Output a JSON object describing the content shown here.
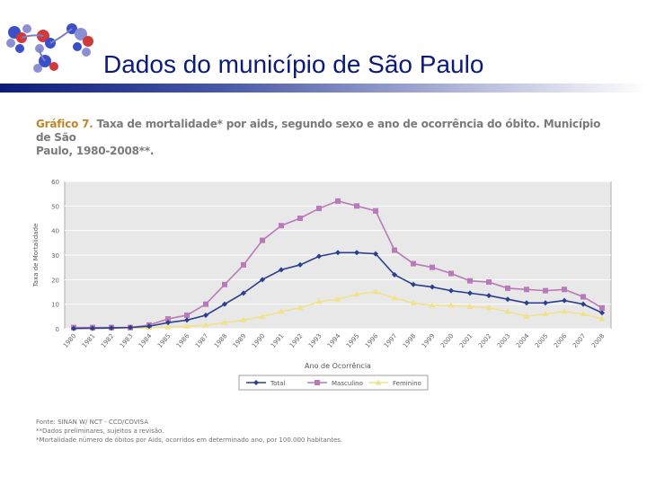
{
  "slide": {
    "title": "Dados do município de São Paulo"
  },
  "logo": {
    "icon": "dna-molecule-logo",
    "colors": [
      "#3a4fc8",
      "#d03a3a",
      "#8c8fd6"
    ]
  },
  "figure": {
    "caption_number": "Gráfico 7.",
    "caption_line1": " Taxa de mortalidade* por aids, segundo sexo e ano de ocorrência do óbito. Município de São",
    "caption_line2": "Paulo, 1980-2008**.",
    "notes": [
      "Fonte: SINAN W/ NCT - CCD/COVISA",
      "**Dados preliminares, sujeitos a revisão.",
      "*Mortalidade   número de óbitos por Aids, ocorridos em determinado ano, por 100.000 habitantes."
    ]
  },
  "chart_data": {
    "type": "line",
    "xlabel": "Ano de Ocorrência",
    "ylabel": "Taxa de Mortalidade",
    "ylim": [
      0,
      60
    ],
    "yticks": [
      0,
      10,
      20,
      30,
      40,
      50,
      60
    ],
    "grid": true,
    "legend": "bottom",
    "categories": [
      "1980",
      "1981",
      "1982",
      "1983",
      "1984",
      "1985",
      "1986",
      "1987",
      "1988",
      "1989",
      "1990",
      "1991",
      "1992",
      "1993",
      "1994",
      "1995",
      "1996",
      "1997",
      "1998",
      "1999",
      "2000",
      "2001",
      "2002",
      "2003",
      "2004",
      "2005",
      "2006",
      "2007",
      "2008"
    ],
    "series": [
      {
        "name": "Total",
        "color": "#2b3f8c",
        "marker": "diamond",
        "values": [
          0.1,
          0.2,
          0.3,
          0.5,
          1,
          2.5,
          3.5,
          5.5,
          10,
          14.5,
          20,
          24,
          26,
          29.5,
          31,
          31,
          30.5,
          22,
          18,
          17,
          15.5,
          14.5,
          13.5,
          12,
          10.5,
          10.5,
          11.5,
          10,
          6.5
        ]
      },
      {
        "name": "Masculino",
        "color": "#b87ab8",
        "marker": "square",
        "values": [
          0.5,
          0.5,
          0.5,
          0.5,
          1.5,
          4,
          5.5,
          10,
          18,
          26,
          36,
          42,
          45,
          49,
          52,
          50,
          48,
          32,
          26.5,
          25,
          22.5,
          19.5,
          19,
          16.5,
          16,
          15.5,
          16,
          13,
          8.5
        ]
      },
      {
        "name": "Feminino",
        "color": "#f0e28a",
        "marker": "triangle",
        "values": [
          0.1,
          0.1,
          0.1,
          0.2,
          0.4,
          0.7,
          1.0,
          1.5,
          2.5,
          3.5,
          5,
          7,
          8.5,
          11,
          12,
          14,
          15,
          12.5,
          10.5,
          9.5,
          9.5,
          9,
          8.5,
          7,
          5,
          6,
          7,
          6,
          4
        ]
      }
    ]
  }
}
